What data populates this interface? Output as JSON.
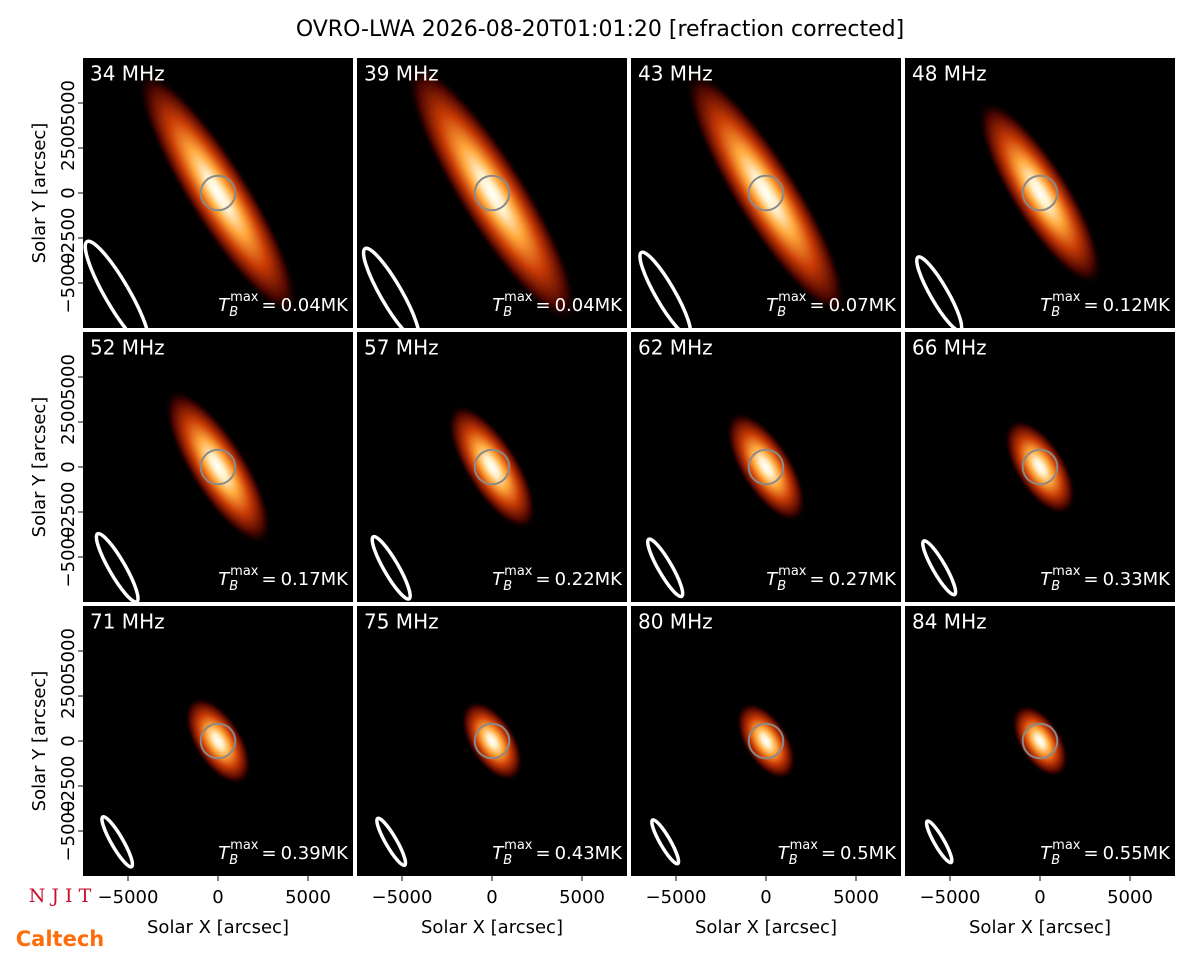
{
  "title": "OVRO-LWA 2026-08-20T01:01:20 [refraction corrected]",
  "annotation_symbol": {
    "main": "T",
    "sub": "B",
    "sup": "max",
    "relation": "="
  },
  "logos": {
    "top": "N J I T",
    "bottom": "Caltech"
  },
  "chart_data": [
    {
      "type": "image",
      "title": "34 MHz",
      "values": [
        0.04
      ],
      "value_labels": [
        "0.04MK"
      ],
      "xlim": [
        -7500,
        7500
      ],
      "ylim": [
        -7500,
        7500
      ],
      "ylabel": "Solar Y [arcsec]",
      "yticks": [
        {
          "value": -5000,
          "label": "−5000"
        },
        {
          "value": -2500,
          "label": "−2500"
        },
        0,
        2500,
        5000
      ],
      "disk": {
        "x": 0,
        "y": 0,
        "r": 960
      },
      "source": {
        "x": 0,
        "y": 0,
        "major": 16000,
        "minor": 3500,
        "angle": -58
      },
      "beam": {
        "x": -5600,
        "y": -5600,
        "major": 6700,
        "minor": 1360,
        "angle": -60
      }
    },
    {
      "type": "image",
      "title": "39 MHz",
      "values": [
        0.04
      ],
      "value_labels": [
        "0.04MK"
      ],
      "xlim": [
        -7500,
        7500
      ],
      "ylim": [
        -7500,
        7500
      ],
      "disk": {
        "x": 0,
        "y": 0,
        "r": 960
      },
      "source": {
        "x": 0,
        "y": 0,
        "major": 17000,
        "minor": 3800,
        "angle": -58
      },
      "beam": {
        "x": -5600,
        "y": -5600,
        "major": 5800,
        "minor": 1180,
        "angle": -60
      }
    },
    {
      "type": "image",
      "title": "43 MHz",
      "values": [
        0.07
      ],
      "value_labels": [
        "0.07MK"
      ],
      "xlim": [
        -7500,
        7500
      ],
      "ylim": [
        -7500,
        7500
      ],
      "disk": {
        "x": 0,
        "y": 0,
        "r": 960
      },
      "source": {
        "x": 0,
        "y": 0,
        "major": 16000,
        "minor": 3600,
        "angle": -58
      },
      "beam": {
        "x": -5600,
        "y": -5600,
        "major": 5300,
        "minor": 1070,
        "angle": -60
      }
    },
    {
      "type": "image",
      "title": "48 MHz",
      "values": [
        0.12
      ],
      "value_labels": [
        "0.12MK"
      ],
      "xlim": [
        -7500,
        7500
      ],
      "ylim": [
        -7500,
        7500
      ],
      "disk": {
        "x": 0,
        "y": 0,
        "r": 960
      },
      "source": {
        "x": 0,
        "y": 0,
        "major": 12000,
        "minor": 3300,
        "angle": -58
      },
      "beam": {
        "x": -5600,
        "y": -5600,
        "major": 4700,
        "minor": 960,
        "angle": -60
      }
    },
    {
      "type": "image",
      "title": "52 MHz",
      "values": [
        0.17
      ],
      "value_labels": [
        "0.17MK"
      ],
      "xlim": [
        -7500,
        7500
      ],
      "ylim": [
        -7500,
        7500
      ],
      "ylabel": "Solar Y [arcsec]",
      "yticks": [
        {
          "value": -5000,
          "label": "−5000"
        },
        {
          "value": -2500,
          "label": "−2500"
        },
        0,
        2500,
        5000
      ],
      "disk": {
        "x": 0,
        "y": 0,
        "r": 960
      },
      "source": {
        "x": 0,
        "y": 0,
        "major": 10000,
        "minor": 3200,
        "angle": -58
      },
      "beam": {
        "x": -5600,
        "y": -5600,
        "major": 4360,
        "minor": 890,
        "angle": -60
      }
    },
    {
      "type": "image",
      "title": "57 MHz",
      "values": [
        0.22
      ],
      "value_labels": [
        "0.22MK"
      ],
      "xlim": [
        -7500,
        7500
      ],
      "ylim": [
        -7500,
        7500
      ],
      "disk": {
        "x": 0,
        "y": 0,
        "r": 960
      },
      "source": {
        "x": 0,
        "y": 0,
        "major": 8000,
        "minor": 3000,
        "angle": -58
      },
      "beam": {
        "x": -5600,
        "y": -5600,
        "major": 3980,
        "minor": 810,
        "angle": -60
      }
    },
    {
      "type": "image",
      "title": "62 MHz",
      "values": [
        0.27
      ],
      "value_labels": [
        "0.27MK"
      ],
      "xlim": [
        -7500,
        7500
      ],
      "ylim": [
        -7500,
        7500
      ],
      "disk": {
        "x": 0,
        "y": 0,
        "r": 960
      },
      "source": {
        "x": 0,
        "y": 0,
        "major": 7000,
        "minor": 2900,
        "angle": -58
      },
      "beam": {
        "x": -5600,
        "y": -5600,
        "major": 3660,
        "minor": 750,
        "angle": -60
      }
    },
    {
      "type": "image",
      "title": "66 MHz",
      "values": [
        0.33
      ],
      "value_labels": [
        "0.33MK"
      ],
      "xlim": [
        -7500,
        7500
      ],
      "ylim": [
        -7500,
        7500
      ],
      "disk": {
        "x": 0,
        "y": 0,
        "r": 960
      },
      "source": {
        "x": 0,
        "y": 0,
        "major": 6000,
        "minor": 2800,
        "angle": -58
      },
      "beam": {
        "x": -5600,
        "y": -5600,
        "major": 3440,
        "minor": 700,
        "angle": -60
      }
    },
    {
      "type": "image",
      "title": "71 MHz",
      "values": [
        0.39
      ],
      "value_labels": [
        "0.39MK"
      ],
      "xlim": [
        -7500,
        7500
      ],
      "ylim": [
        -7500,
        7500
      ],
      "xlabel": "Solar X [arcsec]",
      "ylabel": "Solar Y [arcsec]",
      "xticks": [
        {
          "value": -5000,
          "label": "−5000"
        },
        0,
        5000
      ],
      "yticks": [
        {
          "value": -5000,
          "label": "−5000"
        },
        {
          "value": -2500,
          "label": "−2500"
        },
        0,
        2500,
        5000
      ],
      "disk": {
        "x": 0,
        "y": 0,
        "r": 960
      },
      "source": {
        "x": 0,
        "y": 0,
        "major": 5500,
        "minor": 2700,
        "angle": -58
      },
      "beam": {
        "x": -5600,
        "y": -5600,
        "major": 3200,
        "minor": 650,
        "angle": -60
      }
    },
    {
      "type": "image",
      "title": "75 MHz",
      "values": [
        0.43
      ],
      "value_labels": [
        "0.43MK"
      ],
      "xlim": [
        -7500,
        7500
      ],
      "ylim": [
        -7500,
        7500
      ],
      "xlabel": "Solar X [arcsec]",
      "xticks": [
        {
          "value": -5000,
          "label": "−5000"
        },
        0,
        5000
      ],
      "disk": {
        "x": 0,
        "y": 0,
        "r": 960
      },
      "source": {
        "x": 0,
        "y": 0,
        "major": 5000,
        "minor": 2600,
        "angle": -58
      },
      "beam": {
        "x": -5600,
        "y": -5600,
        "major": 3000,
        "minor": 610,
        "angle": -60
      }
    },
    {
      "type": "image",
      "title": "80 MHz",
      "values": [
        0.5
      ],
      "value_labels": [
        "0.5MK"
      ],
      "xlim": [
        -7500,
        7500
      ],
      "ylim": [
        -7500,
        7500
      ],
      "xlabel": "Solar X [arcsec]",
      "xticks": [
        {
          "value": -5000,
          "label": "−5000"
        },
        0,
        5000
      ],
      "disk": {
        "x": 0,
        "y": 0,
        "r": 960
      },
      "source": {
        "x": 0,
        "y": 0,
        "major": 4800,
        "minor": 2500,
        "angle": -58
      },
      "beam": {
        "x": -5600,
        "y": -5600,
        "major": 2800,
        "minor": 570,
        "angle": -60
      }
    },
    {
      "type": "image",
      "title": "84 MHz",
      "values": [
        0.55
      ],
      "value_labels": [
        "0.55MK"
      ],
      "xlim": [
        -7500,
        7500
      ],
      "ylim": [
        -7500,
        7500
      ],
      "xlabel": "Solar X [arcsec]",
      "xticks": [
        {
          "value": -5000,
          "label": "−5000"
        },
        0,
        5000
      ],
      "disk": {
        "x": 0,
        "y": 0,
        "r": 960
      },
      "source": {
        "x": 0,
        "y": 0,
        "major": 4500,
        "minor": 2400,
        "angle": -58
      },
      "beam": {
        "x": -5600,
        "y": -5600,
        "major": 2650,
        "minor": 540,
        "angle": -60
      }
    }
  ]
}
